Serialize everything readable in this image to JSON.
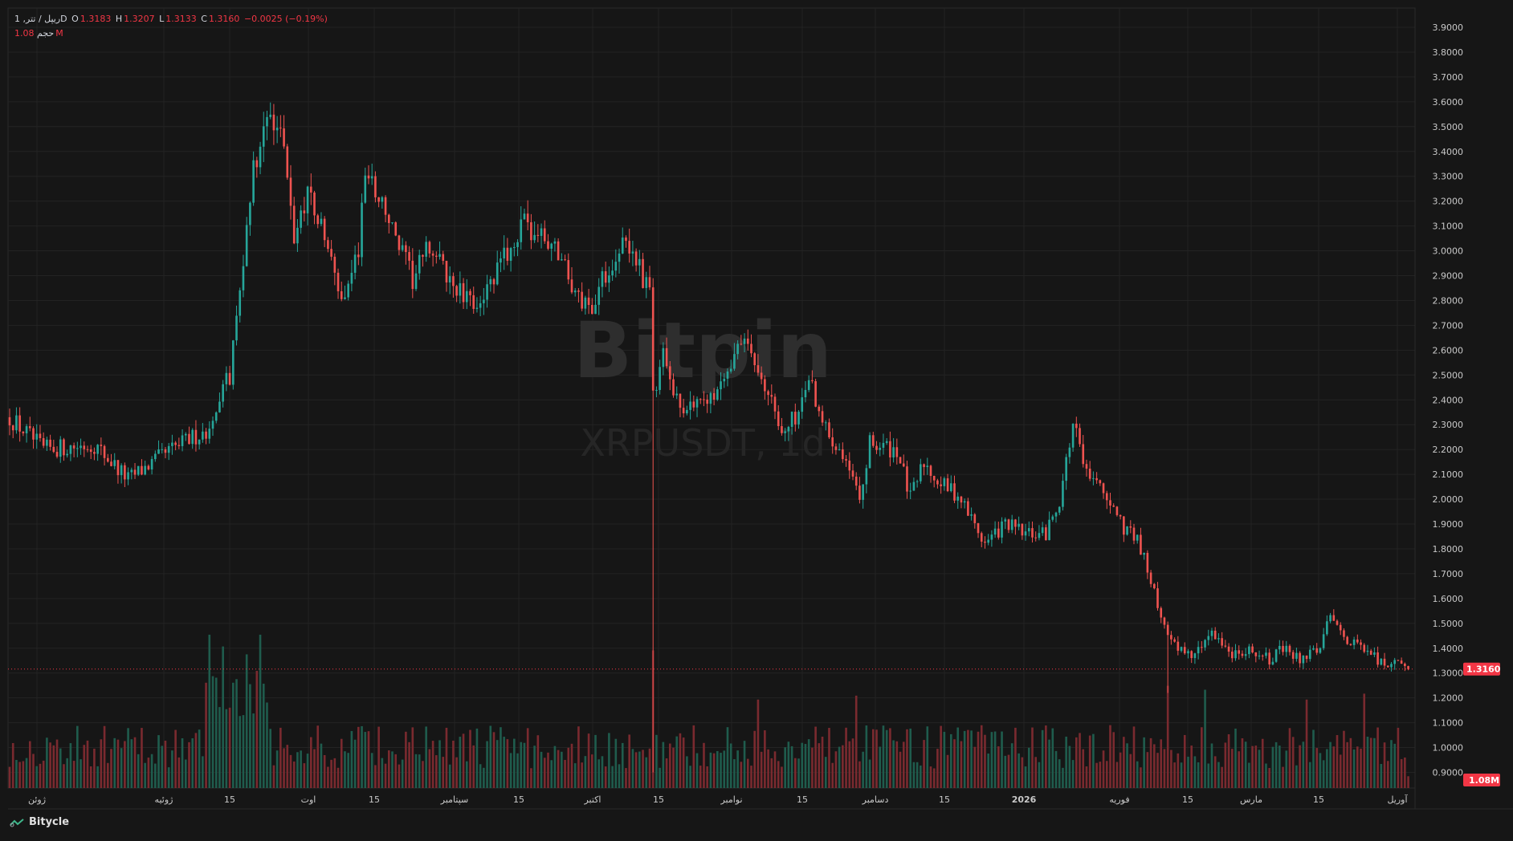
{
  "legend": {
    "title": "ریپل / تتر, 1D",
    "open_label": "O",
    "open": "1.3183",
    "high_label": "H",
    "high": "1.3207",
    "low_label": "L",
    "low": "1.3133",
    "close_label": "C",
    "close": "1.3160",
    "change": "−0.0025 (−0.19%)",
    "volume_label": "حجم",
    "volume": "1.08M"
  },
  "watermark": {
    "brand": "Bitpin",
    "symbol": "XRPUSDT, 1d"
  },
  "footer": {
    "brand": "Bitycle",
    "icon": "bitycle-logo-icon"
  },
  "colors": {
    "up": "#26a69a",
    "down": "#ef5350",
    "price_badge": "#f23645",
    "grid": "#232323",
    "background": "#161616"
  },
  "chart_data": {
    "type": "candlestick",
    "symbol": "XRPUSDT",
    "interval": "1D",
    "price_axis": {
      "min": 0.9,
      "max": 3.9,
      "step": 0.1,
      "tick_labels": [
        "3.9000",
        "3.8000",
        "3.7000",
        "3.6000",
        "3.5000",
        "3.4000",
        "3.3000",
        "3.2000",
        "3.1000",
        "3.0000",
        "2.9000",
        "2.8000",
        "2.7000",
        "2.6000",
        "2.5000",
        "2.4000",
        "2.3000",
        "2.2000",
        "2.1000",
        "2.0000",
        "1.9000",
        "1.8000",
        "1.7000",
        "1.6000",
        "1.5000",
        "1.4000",
        "1.3000",
        "1.2000",
        "1.1000",
        "1.0000",
        "0.9000"
      ]
    },
    "last_price": 1.316,
    "last_price_label": "1.3160",
    "last_volume_label": "1.08M",
    "x_axis_labels": [
      "ژوئن",
      "15",
      "ژوئیه",
      "15",
      "اوت",
      "15",
      "سپتامبر",
      "15",
      "اکتبر",
      "15",
      "نوامبر",
      "15",
      "دسامبر",
      "15",
      "2026",
      "15",
      "فوریه",
      "15",
      "مارس",
      "15",
      "آوریل"
    ],
    "key_points": [
      {
        "day": 0,
        "price": 2.33
      },
      {
        "day": 10,
        "price": 2.2
      },
      {
        "day": 25,
        "price": 2.22
      },
      {
        "day": 35,
        "price": 2.08
      },
      {
        "day": 48,
        "price": 2.2
      },
      {
        "day": 58,
        "price": 2.28
      },
      {
        "day": 65,
        "price": 2.5
      },
      {
        "day": 72,
        "price": 3.35
      },
      {
        "day": 77,
        "price": 3.55
      },
      {
        "day": 80,
        "price": 3.5
      },
      {
        "day": 84,
        "price": 3.05
      },
      {
        "day": 88,
        "price": 3.25
      },
      {
        "day": 93,
        "price": 3.05
      },
      {
        "day": 98,
        "price": 2.8
      },
      {
        "day": 103,
        "price": 3.0
      },
      {
        "day": 105,
        "price": 3.32
      },
      {
        "day": 110,
        "price": 3.2
      },
      {
        "day": 113,
        "price": 3.08
      },
      {
        "day": 119,
        "price": 2.88
      },
      {
        "day": 124,
        "price": 3.02
      },
      {
        "day": 130,
        "price": 2.88
      },
      {
        "day": 136,
        "price": 2.78
      },
      {
        "day": 142,
        "price": 2.85
      },
      {
        "day": 147,
        "price": 3.0
      },
      {
        "day": 152,
        "price": 3.1
      },
      {
        "day": 157,
        "price": 3.05
      },
      {
        "day": 162,
        "price": 3.0
      },
      {
        "day": 168,
        "price": 2.8
      },
      {
        "day": 172,
        "price": 2.78
      },
      {
        "day": 175,
        "price": 2.88
      },
      {
        "day": 180,
        "price": 3.02
      },
      {
        "day": 185,
        "price": 2.98
      },
      {
        "day": 189,
        "price": 2.82
      },
      {
        "day": 190,
        "price": 2.4
      },
      {
        "day": 193,
        "price": 2.6
      },
      {
        "day": 198,
        "price": 2.35
      },
      {
        "day": 205,
        "price": 2.42
      },
      {
        "day": 210,
        "price": 2.45
      },
      {
        "day": 215,
        "price": 2.65
      },
      {
        "day": 222,
        "price": 2.52
      },
      {
        "day": 228,
        "price": 2.26
      },
      {
        "day": 233,
        "price": 2.35
      },
      {
        "day": 236,
        "price": 2.5
      },
      {
        "day": 241,
        "price": 2.28
      },
      {
        "day": 246,
        "price": 2.2
      },
      {
        "day": 251,
        "price": 1.98
      },
      {
        "day": 254,
        "price": 2.22
      },
      {
        "day": 262,
        "price": 2.2
      },
      {
        "day": 266,
        "price": 2.0
      },
      {
        "day": 270,
        "price": 2.15
      },
      {
        "day": 275,
        "price": 2.06
      },
      {
        "day": 280,
        "price": 2.02
      },
      {
        "day": 288,
        "price": 1.82
      },
      {
        "day": 294,
        "price": 1.9
      },
      {
        "day": 300,
        "price": 1.86
      },
      {
        "day": 306,
        "price": 1.86
      },
      {
        "day": 310,
        "price": 2.0
      },
      {
        "day": 314,
        "price": 2.3
      },
      {
        "day": 318,
        "price": 2.12
      },
      {
        "day": 322,
        "price": 2.05
      },
      {
        "day": 328,
        "price": 1.9
      },
      {
        "day": 333,
        "price": 1.85
      },
      {
        "day": 338,
        "price": 1.62
      },
      {
        "day": 342,
        "price": 1.44
      },
      {
        "day": 345,
        "price": 1.4
      },
      {
        "day": 350,
        "price": 1.38
      },
      {
        "day": 355,
        "price": 1.48
      },
      {
        "day": 360,
        "price": 1.38
      },
      {
        "day": 366,
        "price": 1.4
      },
      {
        "day": 372,
        "price": 1.35
      },
      {
        "day": 376,
        "price": 1.4
      },
      {
        "day": 380,
        "price": 1.36
      },
      {
        "day": 386,
        "price": 1.38
      },
      {
        "day": 390,
        "price": 1.52
      },
      {
        "day": 396,
        "price": 1.42
      },
      {
        "day": 402,
        "price": 1.38
      },
      {
        "day": 405,
        "price": 1.34
      },
      {
        "day": 410,
        "price": 1.33
      },
      {
        "day": 413,
        "price": 1.316
      }
    ],
    "volume_spikes": [
      {
        "day": 59,
        "volume_pct": 0.78
      },
      {
        "day": 63,
        "volume_pct": 0.72
      },
      {
        "day": 70,
        "volume_pct": 0.68
      },
      {
        "day": 74,
        "volume_pct": 0.78
      },
      {
        "day": 190,
        "volume_pct": 0.7
      },
      {
        "day": 221,
        "volume_pct": 0.45
      },
      {
        "day": 250,
        "volume_pct": 0.47
      },
      {
        "day": 316,
        "volume_pct": 0.28
      },
      {
        "day": 342,
        "volume_pct": 0.52
      },
      {
        "day": 353,
        "volume_pct": 0.5
      },
      {
        "day": 383,
        "volume_pct": 0.45
      },
      {
        "day": 400,
        "volume_pct": 0.48
      },
      {
        "day": 413,
        "volume_pct": 0.06
      }
    ]
  }
}
